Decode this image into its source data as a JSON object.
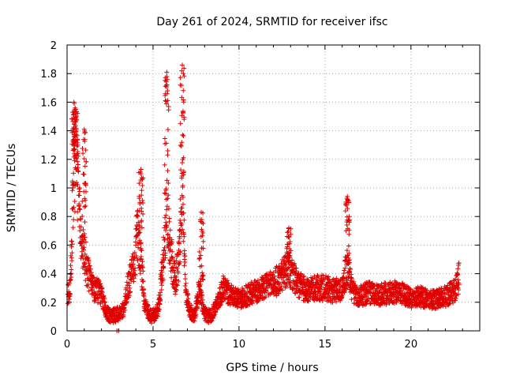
{
  "chart_data": {
    "type": "scatter",
    "title": "Day 261 of 2024, SRMTID for receiver ifsc",
    "xlabel": "GPS time / hours",
    "ylabel": "SRMTID / TECUs",
    "xlim": [
      0,
      24
    ],
    "ylim": [
      0,
      2
    ],
    "x_ticks": [
      0,
      5,
      10,
      15,
      20
    ],
    "x_tick_labels": [
      "0",
      "5",
      "10",
      "15",
      "20"
    ],
    "y_ticks": [
      0,
      0.2,
      0.4,
      0.6,
      0.8,
      1,
      1.2,
      1.4,
      1.6,
      1.8,
      2
    ],
    "y_tick_labels": [
      "0",
      "0.2",
      "0.4",
      "0.6",
      "0.8",
      "1",
      "1.2",
      "1.4",
      "1.6",
      "1.8",
      "2"
    ],
    "grid": true,
    "marker": "+",
    "series_color": "#e00000",
    "envelope": {
      "description": "approximate central trend of the dense point cloud (hours, TECU)",
      "x": [
        0.0,
        0.2,
        0.4,
        0.6,
        0.8,
        1.0,
        1.2,
        1.5,
        1.8,
        2.0,
        2.3,
        2.6,
        3.0,
        3.3,
        3.6,
        3.9,
        4.1,
        4.3,
        4.5,
        4.8,
        5.0,
        5.3,
        5.6,
        5.8,
        6.0,
        6.3,
        6.5,
        6.7,
        6.9,
        7.1,
        7.4,
        7.7,
        8.0,
        8.3,
        8.6,
        8.9,
        9.1,
        9.5,
        10.0,
        10.5,
        11.0,
        11.5,
        12.0,
        12.4,
        12.8,
        13.1,
        13.4,
        14.0,
        14.5,
        15.0,
        15.5,
        16.0,
        16.3,
        16.6,
        17.0,
        17.5,
        18.0,
        18.5,
        19.0,
        19.5,
        20.0,
        20.5,
        21.0,
        21.5,
        22.0,
        22.5,
        22.8
      ],
      "y": [
        0.22,
        0.35,
        1.2,
        1.1,
        0.7,
        0.55,
        0.4,
        0.3,
        0.28,
        0.25,
        0.12,
        0.1,
        0.12,
        0.15,
        0.35,
        0.45,
        0.7,
        0.5,
        0.2,
        0.1,
        0.1,
        0.15,
        0.5,
        0.9,
        0.55,
        0.35,
        0.5,
        1.0,
        0.3,
        0.15,
        0.1,
        0.3,
        0.12,
        0.1,
        0.15,
        0.25,
        0.3,
        0.25,
        0.22,
        0.25,
        0.28,
        0.3,
        0.33,
        0.37,
        0.42,
        0.4,
        0.32,
        0.28,
        0.3,
        0.3,
        0.28,
        0.3,
        0.45,
        0.27,
        0.24,
        0.27,
        0.25,
        0.26,
        0.27,
        0.26,
        0.23,
        0.24,
        0.22,
        0.22,
        0.24,
        0.28,
        0.38
      ]
    },
    "peaks": [
      {
        "x": 0.4,
        "y": 1.6
      },
      {
        "x": 0.5,
        "y": 1.55
      },
      {
        "x": 1.0,
        "y": 1.41
      },
      {
        "x": 4.3,
        "y": 1.13
      },
      {
        "x": 5.8,
        "y": 1.81
      },
      {
        "x": 6.7,
        "y": 1.86
      },
      {
        "x": 7.8,
        "y": 0.83
      },
      {
        "x": 12.9,
        "y": 0.72
      },
      {
        "x": 16.3,
        "y": 0.94
      }
    ],
    "notable_points": [
      {
        "x": 2.9,
        "y": 0.0
      },
      {
        "x": 3.0,
        "y": 0.0
      }
    ]
  }
}
